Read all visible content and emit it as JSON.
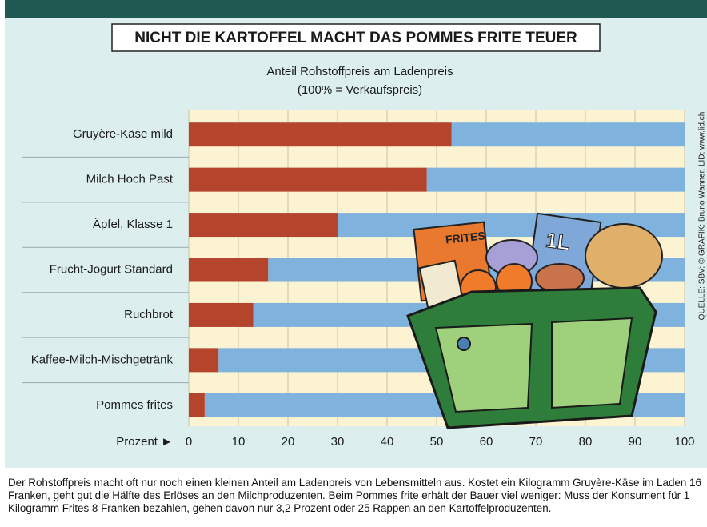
{
  "chart_data": {
    "type": "bar",
    "orientation": "horizontal",
    "title": "NICHT DIE KARTOFFEL MACHT DAS POMMES FRITE TEUER",
    "subtitle": [
      "Anteil Rohstoffpreis am Ladenpreis",
      "(100% = Verkaufspreis)"
    ],
    "categories": [
      "Gruyère-Käse mild",
      "Milch Hoch Past",
      "Äpfel, Klasse 1",
      "Frucht-Jogurt Standard",
      "Ruchbrot",
      "Kaffee-Milch-Mischgetränk",
      "Pommes frites"
    ],
    "values": [
      53,
      48,
      30,
      16,
      13,
      6,
      3.2
    ],
    "color": "#b5442c",
    "remainder_color": "#7fb2dc",
    "xlabel": "Prozent ►",
    "xlim": [
      0,
      100
    ],
    "xticks": [
      0,
      10,
      20,
      30,
      40,
      50,
      60,
      70,
      80,
      90,
      100
    ],
    "grid": true,
    "source": "QUELLE: SBV; © GRAFIK: Bruno Wanner, LID; www.lid.ch",
    "note": "Der Rohstoffpreis macht oft nur noch einen kleinen Anteil am Ladenpreis von Lebensmitteln aus. Kostet ein Kilogramm Gruyère-Käse im Laden 16 Franken, geht gut die Hälfte des Erlöses an den Milchproduzenten. Beim Pommes frite erhält der Bauer viel weniger: Muss der Konsument für 1 Kilogramm Frites 8 Franken bezahlen, gehen davon nur 3,2 Prozent oder 25 Rappen an den Kartoffelproduzenten."
  }
}
